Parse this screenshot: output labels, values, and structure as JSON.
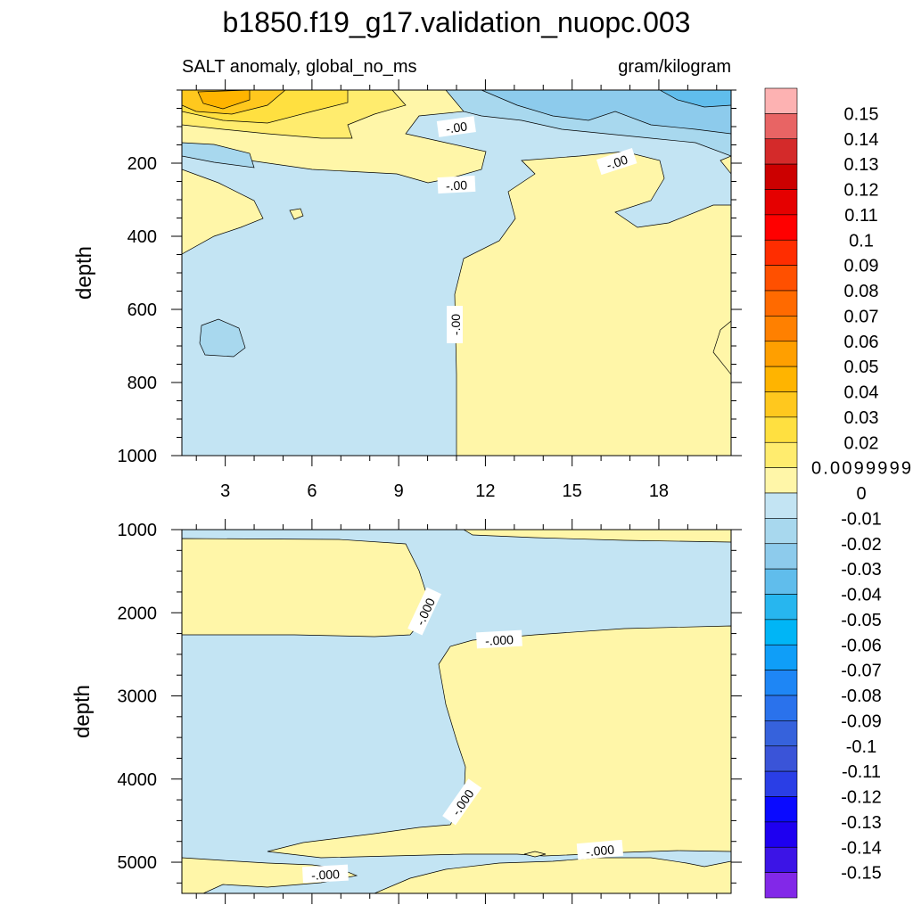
{
  "chart_data": {
    "type": "contour",
    "title": "b1850.f19_g17.validation_nuopc.003",
    "subtitle_left": "SALT anomaly, global_no_ms",
    "subtitle_right": "gram/kilogram",
    "x": {
      "label": "",
      "ticks": [
        3,
        6,
        9,
        12,
        15,
        18
      ],
      "tick_labels": [
        "3",
        "6",
        "9",
        "12",
        "15",
        "18"
      ],
      "range": [
        1.5,
        20.5
      ]
    },
    "panels": [
      {
        "name": "upper",
        "ylabel": "depth",
        "yrange": [
          0,
          1000
        ],
        "yticks": [
          200,
          400,
          600,
          800,
          1000
        ],
        "ytick_labels": [
          "200",
          "400",
          "600",
          "800",
          "1000"
        ],
        "contour_labels": [
          "-.00",
          "-.00",
          "-.00",
          "-.00"
        ]
      },
      {
        "name": "lower",
        "ylabel": "depth",
        "yrange": [
          1000,
          5375
        ],
        "yticks": [
          1000,
          2000,
          3000,
          4000,
          5000
        ],
        "ytick_labels": [
          "1000",
          "2000",
          "3000",
          "4000",
          "5000"
        ],
        "contour_labels": [
          "-.000",
          "-.000",
          "-.000",
          "-.000",
          "-.000"
        ]
      }
    ],
    "colorbar": {
      "labels": [
        "0.15",
        "0.14",
        "0.13",
        "0.12",
        "0.11",
        "0.1",
        "0.09",
        "0.08",
        "0.07",
        "0.06",
        "0.05",
        "0.04",
        "0.03",
        "0.02",
        "0.0099999",
        "0",
        "-0.01",
        "-0.02",
        "-0.03",
        "-0.04",
        "-0.05",
        "-0.06",
        "-0.07",
        "-0.08",
        "-0.09",
        "-0.1",
        "-0.11",
        "-0.12",
        "-0.13",
        "-0.14",
        "-0.15"
      ],
      "colors": [
        "#fdb2b2",
        "#e86464",
        "#d42a2a",
        "#cc0000",
        "#e50000",
        "#ff0000",
        "#ff2d00",
        "#ff5000",
        "#ff6a00",
        "#ff8000",
        "#ff9f00",
        "#ffb400",
        "#ffc81e",
        "#ffe040",
        "#ffec6e",
        "#fff6a8",
        "#c3e4f3",
        "#a8d8ee",
        "#8dcbec",
        "#60bdec",
        "#27b6ef",
        "#00b5f6",
        "#0f9ef8",
        "#1e86f5",
        "#2a72ec",
        "#3662dc",
        "#3a54d8",
        "#2a3ee6",
        "#0a0aff",
        "#1e00f0",
        "#3c14e6",
        "#8228e8"
      ]
    },
    "fill_colors": {
      "positive_weak": "#fff6a8",
      "positive_1": "#ffec6e",
      "positive_2": "#ffe040",
      "positive_3": "#ffc81e",
      "positive_4": "#ffb400",
      "negative_weak": "#c3e4f3",
      "negative_1": "#a8d8ee",
      "negative_2": "#8dcbec",
      "negative_3": "#60bdec"
    }
  }
}
